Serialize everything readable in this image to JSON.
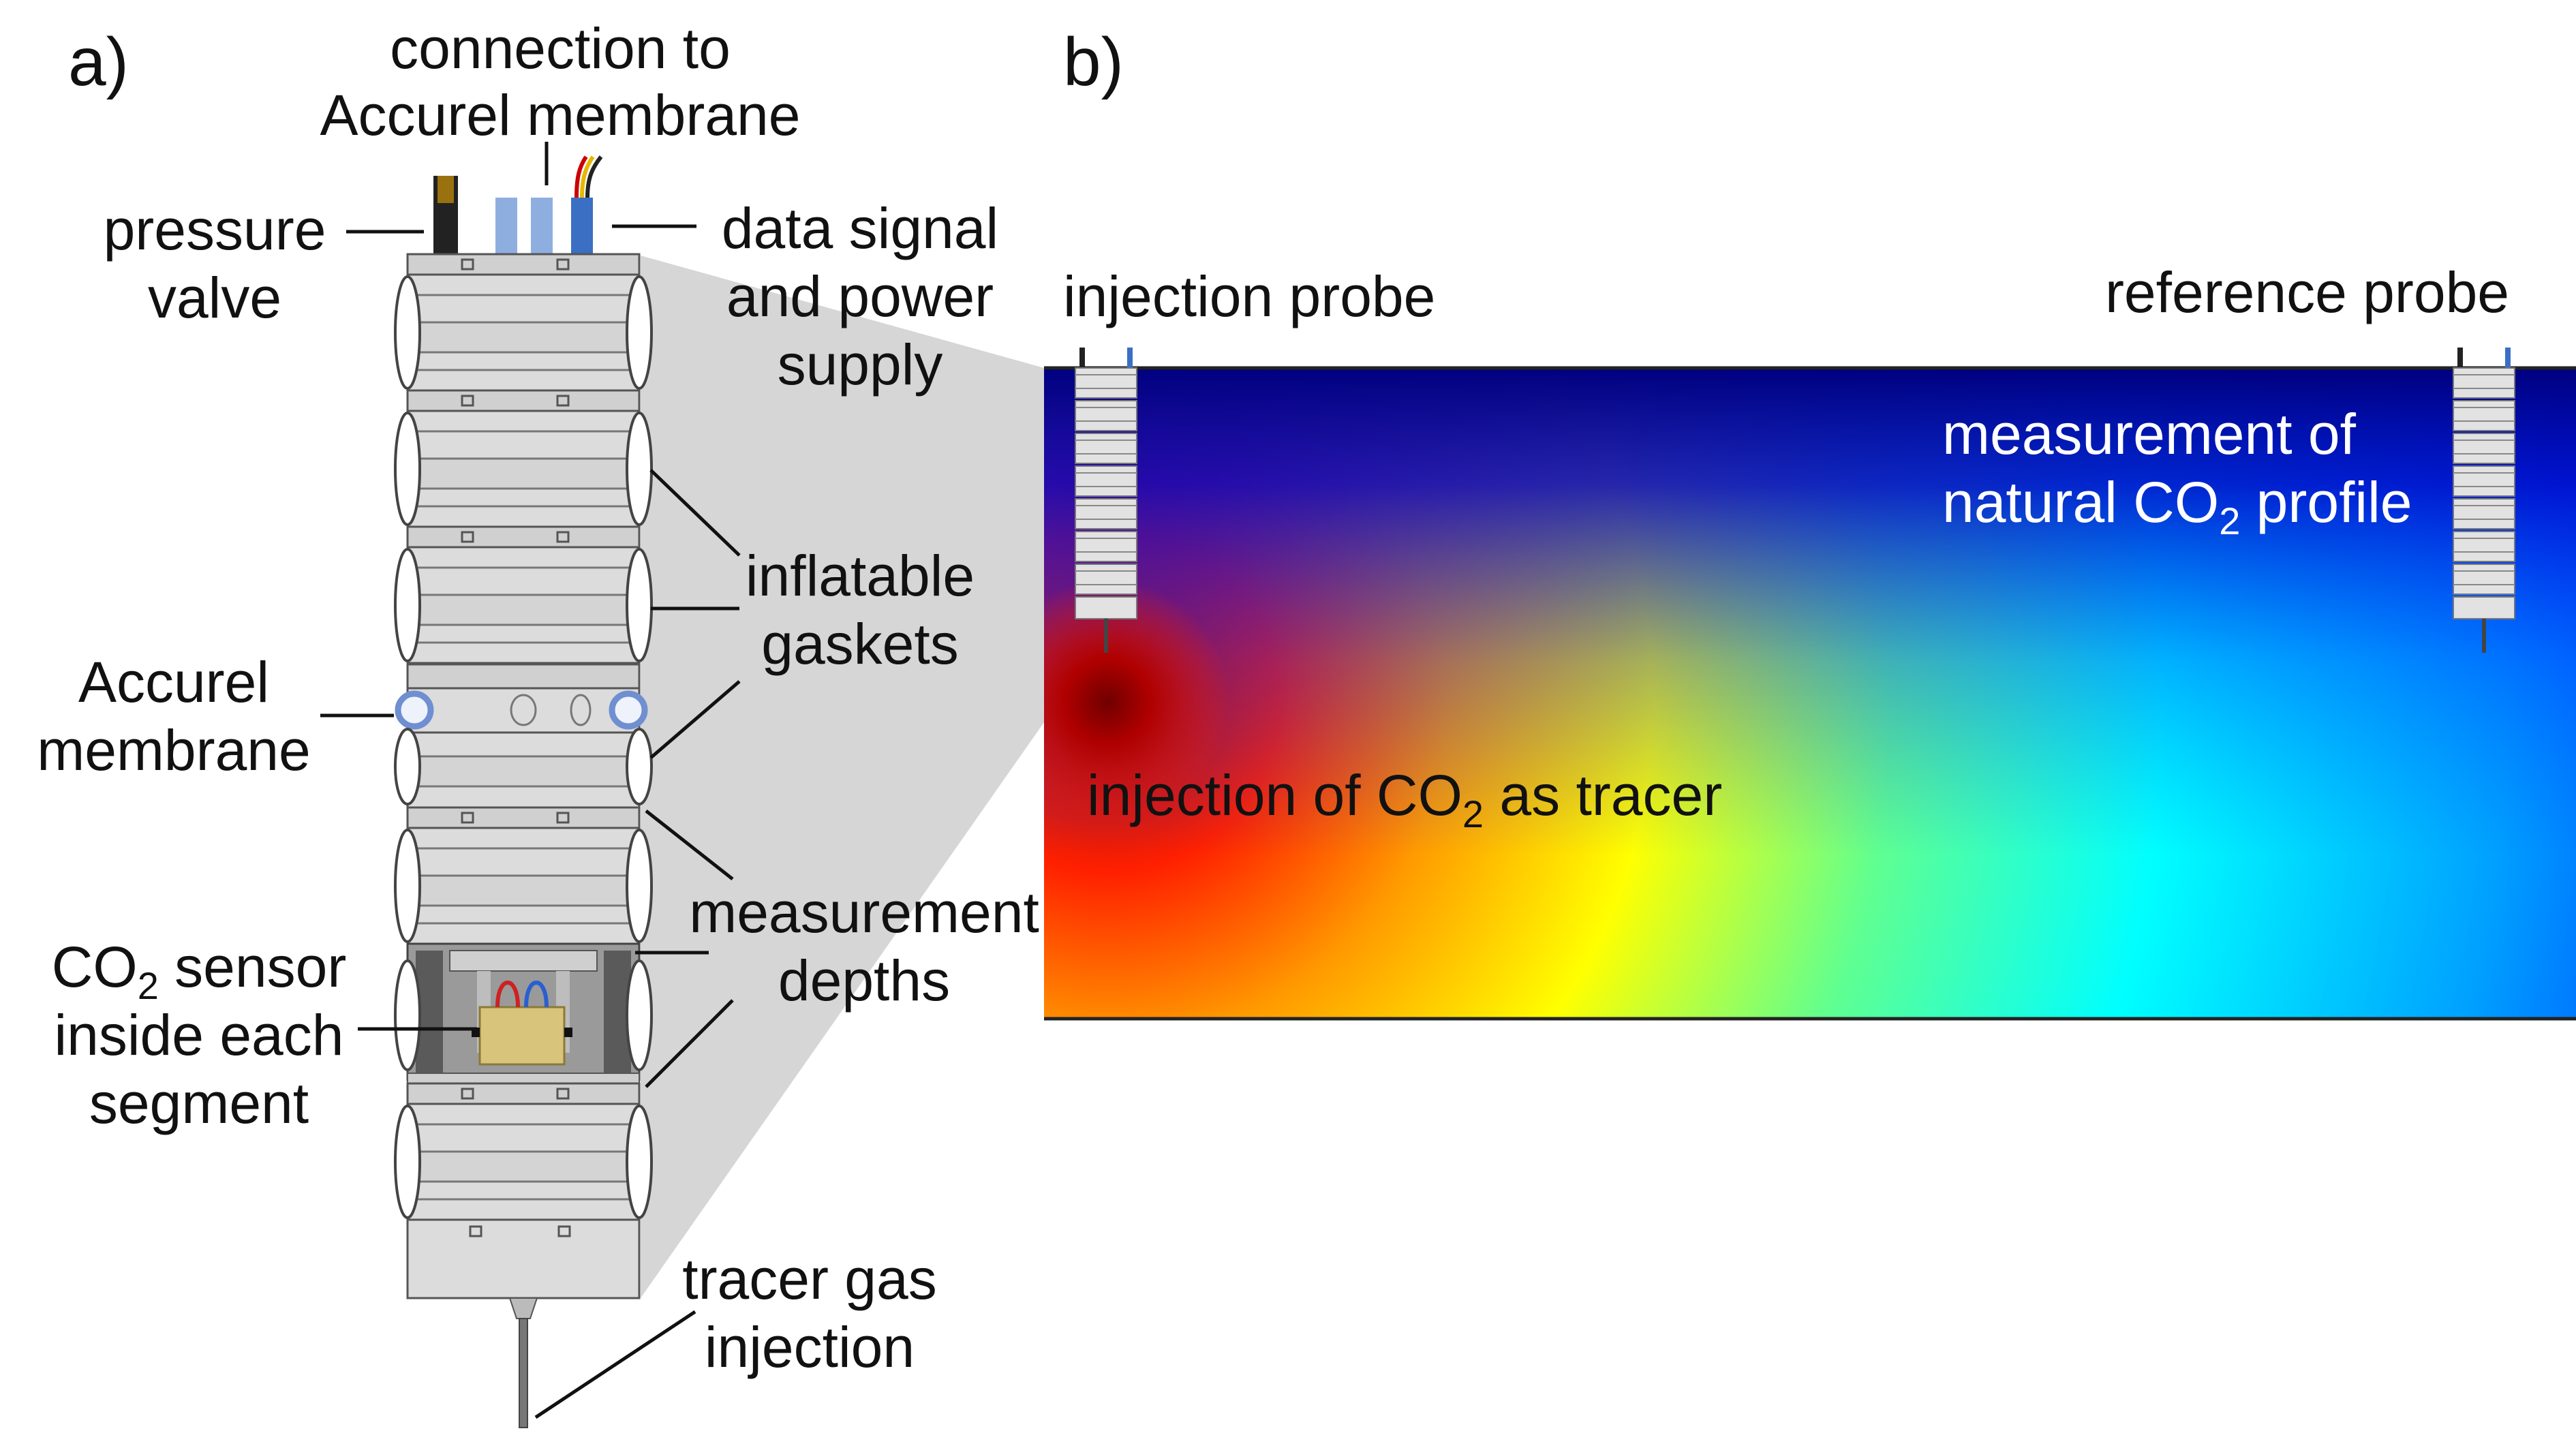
{
  "panel_a": {
    "letter": "a)",
    "labels": {
      "connection_line1": "connection to",
      "connection_line2": "Accurel membrane",
      "pressure_line1": "pressure",
      "pressure_line2": "valve",
      "data_line1": "data signal",
      "data_line2": "and power",
      "data_line3": "supply",
      "gaskets_line1": "inflatable",
      "gaskets_line2": "gaskets",
      "accurel_line1": "Accurel",
      "accurel_line2": "membrane",
      "meas_line1": "measurement",
      "meas_line2": "depths",
      "sensor_co": "CO",
      "sensor_sub": "2",
      "sensor_rest": " sensor",
      "sensor_line2": "inside each",
      "sensor_line3": "segment",
      "tracer_line1": "tracer gas",
      "tracer_line2": "injection"
    }
  },
  "panel_b": {
    "letter": "b)",
    "labels": {
      "injection_probe": "injection probe",
      "reference_probe": "reference probe",
      "natural_line1": "measurement of",
      "natural_pre": "natural CO",
      "natural_sub": "2",
      "natural_post": " profile",
      "inj_pre": "injection of CO",
      "inj_sub": "2",
      "inj_post": " as tracer"
    },
    "colormap": [
      "#00007f",
      "#0000ff",
      "#00ffff",
      "#ffff00",
      "#ff0000",
      "#7f0000"
    ]
  },
  "colors": {
    "probe_body": "#dcdcdc",
    "probe_outline": "#555555",
    "membrane_ring": "#6f8fd0",
    "sensor_gold": "#d8c47a",
    "connector_light_blue": "#8faee0",
    "connector_blue": "#3a6fc4",
    "valve_black": "#222222"
  }
}
